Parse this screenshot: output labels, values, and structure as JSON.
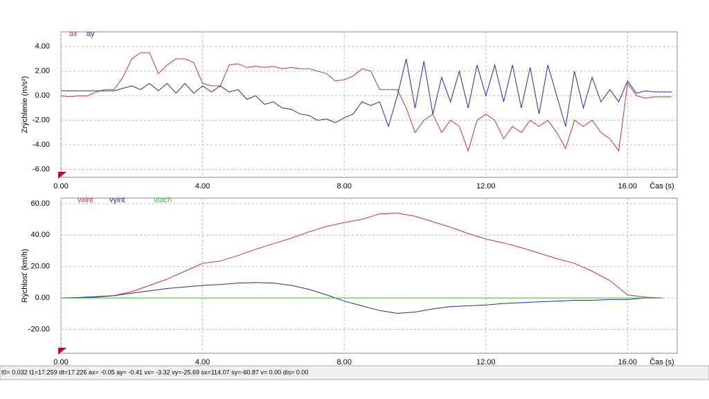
{
  "chart_data": [
    {
      "type": "line",
      "ylabel": "Zrýchlenie  (m/s²)",
      "xlabel": "Čas (s)",
      "grid": true,
      "xlim": [
        0,
        17.4
      ],
      "ylim": [
        -6.65,
        5.2
      ],
      "xticks": [
        {
          "value": 0,
          "label": "0.00"
        },
        {
          "value": 4,
          "label": "4.00"
        },
        {
          "value": 8,
          "label": "8.00"
        },
        {
          "value": 12,
          "label": "12.00"
        },
        {
          "value": 16,
          "label": "16.00"
        }
      ],
      "yticks": [
        {
          "value": -6,
          "label": "-6.00"
        },
        {
          "value": -4,
          "label": "-4.00"
        },
        {
          "value": -2,
          "label": "-2.00"
        },
        {
          "value": 0,
          "label": "0.00"
        },
        {
          "value": 2,
          "label": "2.00"
        },
        {
          "value": 4,
          "label": "4.00"
        }
      ],
      "x": [
        0,
        0.25,
        0.5,
        0.75,
        1,
        1.25,
        1.5,
        1.75,
        2,
        2.25,
        2.5,
        2.75,
        3,
        3.25,
        3.5,
        3.75,
        4,
        4.25,
        4.5,
        4.75,
        5,
        5.25,
        5.5,
        5.75,
        6,
        6.25,
        6.5,
        6.75,
        7,
        7.25,
        7.5,
        7.75,
        8,
        8.25,
        8.5,
        8.75,
        9,
        9.25,
        9.5,
        9.75,
        10,
        10.25,
        10.5,
        10.75,
        11,
        11.25,
        11.5,
        11.75,
        12,
        12.25,
        12.5,
        12.75,
        13,
        13.25,
        13.5,
        13.75,
        14,
        14.25,
        14.5,
        14.75,
        15,
        15.25,
        15.5,
        15.75,
        16,
        16.25,
        16.5,
        16.75,
        17,
        17.25
      ],
      "series": [
        {
          "name": "ax",
          "color": "#c83232",
          "values": [
            0,
            -0.1,
            0,
            0,
            0.3,
            0.5,
            0.5,
            1.5,
            3,
            3.5,
            3.5,
            1.8,
            2.5,
            3,
            3,
            2.7,
            1,
            0.8,
            0.8,
            2.5,
            2.6,
            2.3,
            2.4,
            2.3,
            2.4,
            2.2,
            2.3,
            2.2,
            2.2,
            2,
            1.8,
            1.2,
            1.3,
            1.6,
            2.2,
            2,
            0.5,
            0.5,
            0.5,
            -1,
            -3,
            -2,
            -1.5,
            -3,
            -2,
            -2.5,
            -4.5,
            -2,
            -1.5,
            -2,
            -3.5,
            -2.5,
            -3,
            -2,
            -2.5,
            -2,
            -3,
            -4.3,
            -2,
            -2.5,
            -2,
            -3,
            -3.5,
            -4.5,
            1,
            0,
            -0.2,
            -0.1,
            -0.1,
            -0.1
          ]
        },
        {
          "name": "ay",
          "color": "#2828a0",
          "values": [
            0.4,
            0.4,
            0.4,
            0.4,
            0.4,
            0.4,
            0.4,
            0.6,
            0.8,
            0.5,
            1,
            0.4,
            1,
            0.2,
            1,
            0.2,
            0.8,
            0.3,
            0.8,
            0.3,
            0.5,
            -0.3,
            0,
            -0.7,
            -0.5,
            -1,
            -1.1,
            -1.5,
            -1.6,
            -2,
            -1.9,
            -2.2,
            -1.8,
            -1.5,
            -0.5,
            -0.8,
            -0.5,
            -2.5,
            0,
            3,
            -1,
            2.8,
            -1.5,
            1.5,
            -0.5,
            2,
            -1,
            2.5,
            0,
            2.5,
            -0.5,
            2.5,
            -1,
            2.3,
            -1.5,
            2.5,
            0,
            -2.5,
            2,
            -1,
            1.5,
            -0.5,
            0.5,
            -0.5,
            1.2,
            0.2,
            0.4,
            0.3,
            0.3,
            0.3
          ]
        }
      ]
    },
    {
      "type": "line",
      "ylabel": "Rýchlosť (km/h)",
      "xlabel": "Čas (s)",
      "grid": true,
      "xlim": [
        0,
        17.4
      ],
      "ylim": [
        -35.2,
        63.5
      ],
      "xticks": [
        {
          "value": 0,
          "label": "0.00"
        },
        {
          "value": 4,
          "label": "4.00"
        },
        {
          "value": 8,
          "label": "8.00"
        },
        {
          "value": 12,
          "label": "12.00"
        },
        {
          "value": 16,
          "label": "16.00"
        }
      ],
      "yticks": [
        {
          "value": -20,
          "label": "-20.00"
        },
        {
          "value": 0,
          "label": "0.00"
        },
        {
          "value": 20,
          "label": "20.00"
        },
        {
          "value": 40,
          "label": "40.00"
        },
        {
          "value": 60,
          "label": "60.00"
        }
      ],
      "x": [
        0,
        0.5,
        1,
        1.5,
        2,
        2.5,
        3,
        3.5,
        4,
        4.5,
        5,
        5.5,
        6,
        6.5,
        7,
        7.5,
        8,
        8.5,
        9,
        9.5,
        10,
        10.5,
        11,
        11.5,
        12,
        12.5,
        13,
        13.5,
        14,
        14.5,
        15,
        15.5,
        16,
        16.5,
        17
      ],
      "series": [
        {
          "name": "vxint",
          "color": "#c83232",
          "values": [
            0,
            0,
            0.5,
            1.5,
            4,
            8,
            12,
            17,
            22,
            23.5,
            27,
            31,
            34.5,
            38,
            42,
            45.5,
            48,
            50,
            53.5,
            54,
            52,
            48.5,
            45,
            41,
            37.5,
            35,
            32,
            28.5,
            25,
            22,
            17,
            11,
            2,
            0.5,
            0
          ]
        },
        {
          "name": "vyint",
          "color": "#2828a0",
          "values": [
            0,
            0.3,
            0.8,
            1.5,
            3,
            4.5,
            6,
            7,
            8,
            8.5,
            9.5,
            9.8,
            9.5,
            8,
            5.5,
            2,
            -2,
            -5,
            -8,
            -9.8,
            -9,
            -7,
            -5.5,
            -5,
            -4.5,
            -3.5,
            -3,
            -2.5,
            -2,
            -1.5,
            -1.5,
            -1,
            -1,
            0,
            0
          ]
        },
        {
          "name": "vtach",
          "color": "#32c832",
          "values": [
            0,
            0,
            0,
            0,
            0,
            0,
            0,
            0,
            0,
            0,
            0,
            0,
            0,
            0,
            0,
            0,
            0,
            0,
            0,
            0,
            0,
            0,
            0,
            0,
            0,
            0,
            0,
            0,
            0,
            0,
            0,
            0,
            0,
            0,
            0
          ]
        }
      ]
    }
  ],
  "status_bar": "t0= 0.032 t1=17.259 dt=17.226   ax= -0.05 ay= -0.41 vx= -3.32 vy=-25.69  sx=114.07 sy=-60.87  v=  0.00 dis=  0.00"
}
